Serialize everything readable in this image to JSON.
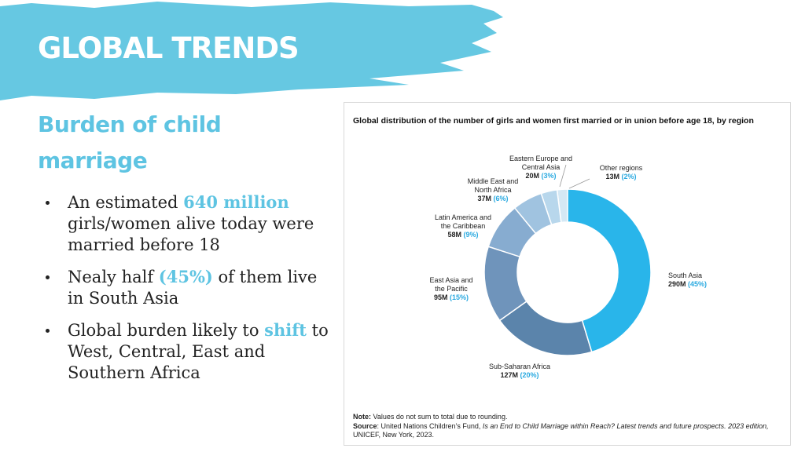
{
  "header": {
    "title": "GLOBAL TRENDS"
  },
  "subtitle": "Burden of child marriage",
  "bullets": [
    [
      {
        "text": "An estimated "
      },
      {
        "text": "640 million",
        "em": true
      },
      {
        "text": " girls/women alive today were married before 18"
      }
    ],
    [
      {
        "text": "Nealy half "
      },
      {
        "text": "(45%)",
        "em": true
      },
      {
        "text": " of them live in South Asia"
      }
    ],
    [
      {
        "text": "Global burden likely to "
      },
      {
        "text": "shift",
        "em": true
      },
      {
        "text": " to West, Central, East and Southern Africa"
      }
    ]
  ],
  "chart_data": {
    "type": "donut",
    "title": "Global distribution of the number of girls and women first married or in union before age 18, by region",
    "categories": [
      "South Asia",
      "Sub-Saharan Africa",
      "East Asia and\nthe Pacific",
      "Latin America and\nthe Caribbean",
      "Middle East and\nNorth Africa",
      "Eastern Europe and\nCentral Asia",
      "Other regions"
    ],
    "values": [
      290,
      127,
      95,
      58,
      37,
      20,
      13
    ],
    "value_labels": [
      "290M",
      "127M",
      "95M",
      "58M",
      "37M",
      "20M",
      "13M"
    ],
    "percents": [
      45,
      20,
      15,
      9,
      6,
      3,
      2
    ],
    "percent_labels": [
      "(45%)",
      "(20%)",
      "(15%)",
      "(9%)",
      "(6%)",
      "(3%)",
      "(2%)"
    ],
    "colors": [
      "#29b5ea",
      "#5b84ab",
      "#6f94bb",
      "#87acd0",
      "#a0c3e0",
      "#b8d7ec",
      "#d5e8f4"
    ]
  },
  "note": {
    "label": "Note:",
    "text": " Values do not sum to total due to rounding."
  },
  "source": {
    "label": "Source",
    "parts": [
      {
        "text": ": United Nations Children’s Fund, "
      },
      {
        "text": "Is an End to Child Marriage within Reach? Latest trends and future prospects. 2023 edition,",
        "italic": true
      },
      {
        "text": " UNICEF, New York, 2023."
      }
    ]
  }
}
